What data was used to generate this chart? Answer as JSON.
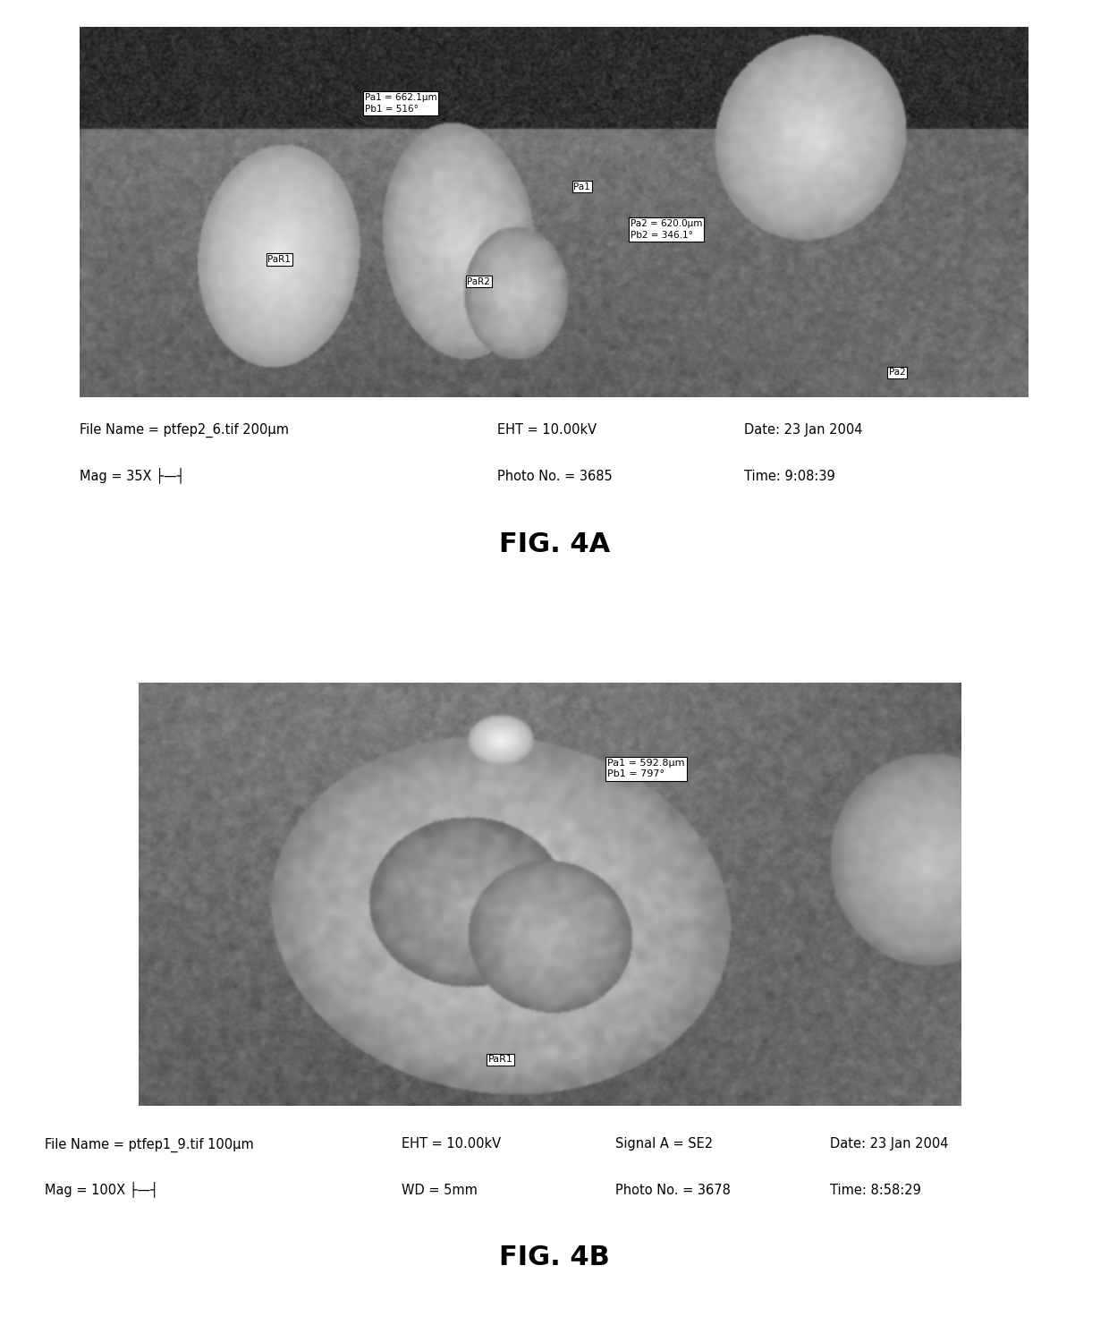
{
  "fig_width": 12.4,
  "fig_height": 14.81,
  "bg_color": "#ffffff",
  "fig4a": {
    "title": "FIG. 4A",
    "metadata_line1": "File Name = ptfep2_6.tif 200µm     EHT = 10.00kV       Date: 23 Jan 2004",
    "metadata_line2": "Mag = 35X ├——┤                   Photo No. = 3685    Time: 9:08:39",
    "meta_l1_c1": "File Name = ptfep2_6.tif 200µm",
    "meta_l1_c2": "EHT = 10.00kV",
    "meta_l1_c3": "Date: 23 Jan 2004",
    "meta_l2_c1": "Mag = 35X ├—┤",
    "meta_l2_c2": "Photo No. = 3685",
    "meta_l2_c3": "Time: 9:08:39",
    "label_PaR1": "PaR1",
    "label_PaR2": "PaR2",
    "label_Pa1": "Pa1",
    "label_Pa2": "Pa2",
    "box_Pa1_line1": "Pa1 = 662.1µm",
    "box_Pa1_line2": "Pb1 = 516°",
    "box_Pa2_line1": "Pa2 = 620.0µm",
    "box_Pa2_line2": "Pb2 = 346.1°"
  },
  "fig4b": {
    "title": "FIG. 4B",
    "meta_l1_c1": "File Name = ptfep1_9.tif 100µm",
    "meta_l1_c2": "EHT = 10.00kV",
    "meta_l1_c3": "Signal A = SE2",
    "meta_l1_c4": "Date: 23 Jan 2004",
    "meta_l2_c1": "Mag = 100X ├—┤",
    "meta_l2_c2": "WD = 5mm",
    "meta_l2_c3": "Photo No. = 3678",
    "meta_l2_c4": "Time: 8:58:29",
    "label_PaR1": "PaR1",
    "box_Pa1_line1": "Pa1 = 592.8µm",
    "box_Pa1_line2": "Pb1 = 797°"
  }
}
